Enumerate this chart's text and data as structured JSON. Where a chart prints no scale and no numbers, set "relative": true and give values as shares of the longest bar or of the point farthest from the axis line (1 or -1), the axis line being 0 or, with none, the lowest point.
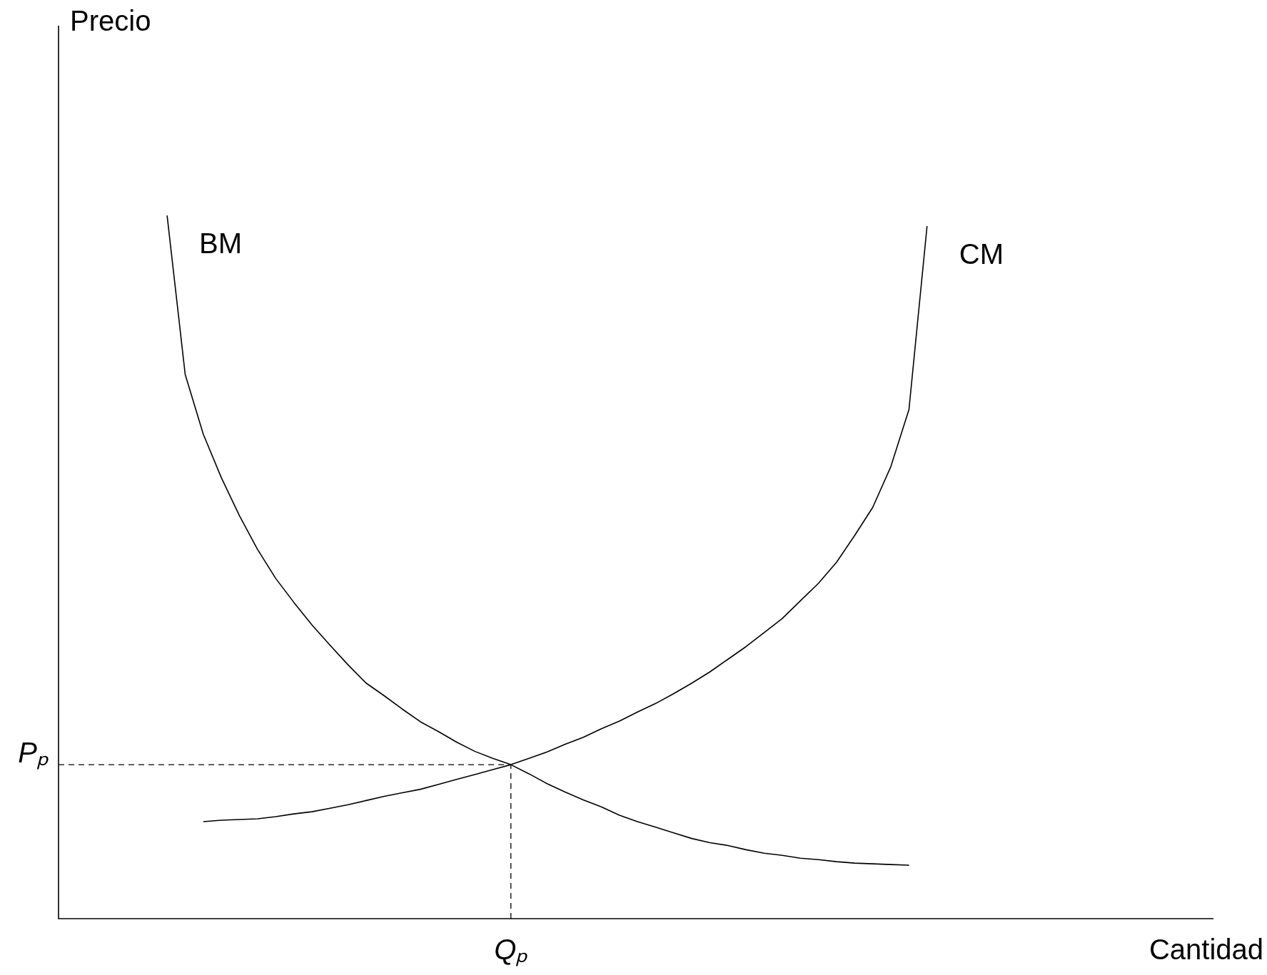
{
  "chart_data": {
    "type": "line",
    "relative": true,
    "xlabel": "Cantidad",
    "annotations": [
      "Precio",
      "Qₚ"
    ],
    "legend": false,
    "marker": "none",
    "line_style": "solid",
    "categories": [
      null,
      null,
      null,
      null,
      null,
      null,
      null,
      null,
      null,
      null,
      null,
      null,
      null,
      null,
      null,
      null,
      null,
      null,
      null,
      null,
      null,
      null,
      null,
      null,
      null,
      null,
      null,
      null,
      null,
      null,
      null,
      null,
      null,
      null,
      null,
      null,
      null,
      null,
      null,
      null,
      null,
      null,
      null,
      null,
      null,
      null,
      null,
      null,
      null,
      null,
      null,
      null,
      null,
      null,
      null,
      null,
      null,
      null,
      null,
      null,
      null,
      null,
      null,
      null
    ],
    "series": [
      {
        "name": "BM",
        "color": "#000000",
        "values": [
          null,
          null,
          null,
          null,
          null,
          null,
          1.0,
          0.774,
          0.689,
          0.627,
          0.573,
          0.525,
          0.484,
          0.45,
          0.418,
          0.389,
          0.361,
          0.335,
          0.317,
          0.298,
          0.28,
          0.266,
          0.251,
          0.238,
          0.228,
          0.219,
          0.206,
          0.192,
          0.18,
          0.169,
          0.159,
          0.147,
          0.138,
          0.13,
          0.122,
          0.114,
          0.108,
          0.104,
          0.098,
          0.093,
          0.09,
          0.086,
          0.084,
          0.081,
          0.079,
          0.078,
          0.077,
          0.076,
          null,
          null,
          null,
          null,
          null,
          null,
          null,
          null,
          null,
          null,
          null,
          null,
          null,
          null,
          null,
          null
        ]
      },
      {
        "name": "CM",
        "color": "#000000",
        "values": [
          null,
          null,
          null,
          null,
          null,
          null,
          null,
          null,
          0.138,
          0.14,
          0.141,
          0.142,
          0.145,
          0.149,
          0.152,
          0.157,
          0.162,
          0.168,
          0.174,
          0.179,
          0.184,
          0.191,
          0.198,
          0.205,
          0.212,
          0.219,
          0.228,
          0.237,
          0.248,
          0.258,
          0.27,
          0.281,
          0.294,
          0.306,
          0.32,
          0.335,
          0.351,
          0.369,
          0.387,
          0.407,
          0.427,
          0.452,
          0.477,
          0.507,
          0.545,
          0.585,
          0.643,
          0.724,
          0.985,
          null,
          null,
          null,
          null,
          null,
          null,
          null,
          null,
          null,
          null,
          null,
          null,
          null,
          null,
          null
        ]
      }
    ],
    "ref_lines": [
      {
        "axis": "y",
        "value": 0.219,
        "label": "Pₚ",
        "line_style": "dashed"
      }
    ]
  }
}
